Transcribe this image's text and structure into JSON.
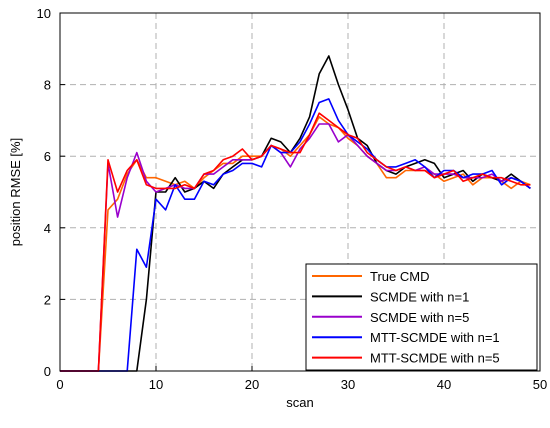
{
  "chart_data": {
    "type": "line",
    "xlabel": "scan",
    "ylabel": "position RMSE [%]",
    "xlim": [
      0,
      50
    ],
    "ylim": [
      0,
      10
    ],
    "xticks": [
      0,
      10,
      20,
      30,
      40,
      50
    ],
    "yticks": [
      0,
      2,
      4,
      6,
      8,
      10
    ],
    "grid": true,
    "legend_position": "bottom-right",
    "x": [
      0,
      1,
      2,
      3,
      4,
      5,
      6,
      7,
      8,
      9,
      10,
      11,
      12,
      13,
      14,
      15,
      16,
      17,
      18,
      19,
      20,
      21,
      22,
      23,
      24,
      25,
      26,
      27,
      28,
      29,
      30,
      31,
      32,
      33,
      34,
      35,
      36,
      37,
      38,
      39,
      40,
      41,
      42,
      43,
      44,
      45,
      46,
      47,
      48,
      49
    ],
    "series": [
      {
        "name": "True CMD",
        "color": "#ff6600",
        "values": [
          0,
          0,
          0,
          0,
          0,
          4.5,
          4.8,
          5.5,
          5.9,
          5.4,
          5.4,
          5.3,
          5.2,
          5.3,
          5.1,
          5.4,
          5.6,
          5.8,
          5.8,
          6.0,
          6.0,
          6.0,
          6.3,
          6.2,
          6.0,
          6.3,
          6.6,
          7.1,
          6.9,
          6.8,
          6.5,
          6.3,
          6.0,
          5.8,
          5.4,
          5.4,
          5.6,
          5.6,
          5.6,
          5.5,
          5.3,
          5.4,
          5.5,
          5.2,
          5.4,
          5.4,
          5.3,
          5.1,
          5.3,
          5.2
        ]
      },
      {
        "name": "SCMDE with n=1",
        "color": "#000000",
        "values": [
          0,
          0,
          0,
          0,
          0,
          0,
          0,
          0,
          0,
          2.0,
          5.0,
          5.0,
          5.4,
          5.0,
          5.1,
          5.3,
          5.1,
          5.5,
          5.7,
          5.9,
          5.9,
          6.0,
          6.5,
          6.4,
          6.1,
          6.5,
          7.1,
          8.3,
          8.8,
          8.0,
          7.3,
          6.5,
          6.3,
          5.8,
          5.6,
          5.5,
          5.7,
          5.8,
          5.9,
          5.8,
          5.4,
          5.5,
          5.6,
          5.3,
          5.5,
          5.4,
          5.3,
          5.5,
          5.3,
          5.1
        ]
      },
      {
        "name": "SCMDE with n=5",
        "color": "#9900cc",
        "values": [
          0,
          0,
          0,
          0,
          0,
          5.8,
          4.3,
          5.4,
          6.1,
          5.3,
          5.0,
          5.1,
          5.2,
          5.1,
          5.1,
          5.5,
          5.5,
          5.7,
          5.9,
          5.9,
          5.9,
          6.0,
          6.3,
          6.1,
          5.7,
          6.2,
          6.5,
          6.9,
          6.9,
          6.4,
          6.6,
          6.3,
          6.0,
          5.8,
          5.6,
          5.6,
          5.7,
          5.6,
          5.7,
          5.5,
          5.5,
          5.5,
          5.4,
          5.4,
          5.4,
          5.5,
          5.3,
          5.4,
          5.3,
          5.1
        ]
      },
      {
        "name": "MTT-SCMDE with n=1",
        "color": "#0000ff",
        "values": [
          0,
          0,
          0,
          0,
          0,
          0,
          0,
          0,
          3.4,
          2.9,
          4.8,
          4.5,
          5.2,
          4.8,
          4.8,
          5.3,
          5.2,
          5.5,
          5.6,
          5.8,
          5.8,
          5.7,
          6.3,
          6.1,
          6.1,
          6.4,
          6.9,
          7.5,
          7.6,
          7.0,
          6.6,
          6.4,
          6.2,
          5.9,
          5.7,
          5.7,
          5.8,
          5.9,
          5.7,
          5.4,
          5.6,
          5.6,
          5.4,
          5.5,
          5.5,
          5.6,
          5.2,
          5.4,
          5.3,
          5.1
        ]
      },
      {
        "name": "MTT-SCMDE with n=5",
        "color": "#ff0000",
        "values": [
          0,
          0,
          0,
          0,
          0,
          5.9,
          5.0,
          5.6,
          5.9,
          5.2,
          5.1,
          5.1,
          5.1,
          5.2,
          5.1,
          5.5,
          5.6,
          5.9,
          6.0,
          6.2,
          5.9,
          6.0,
          6.3,
          6.2,
          6.1,
          6.1,
          6.6,
          7.2,
          7.0,
          6.8,
          6.6,
          6.5,
          6.1,
          5.9,
          5.7,
          5.6,
          5.7,
          5.6,
          5.6,
          5.4,
          5.5,
          5.6,
          5.3,
          5.4,
          5.5,
          5.4,
          5.4,
          5.3,
          5.2,
          5.2
        ]
      }
    ]
  }
}
